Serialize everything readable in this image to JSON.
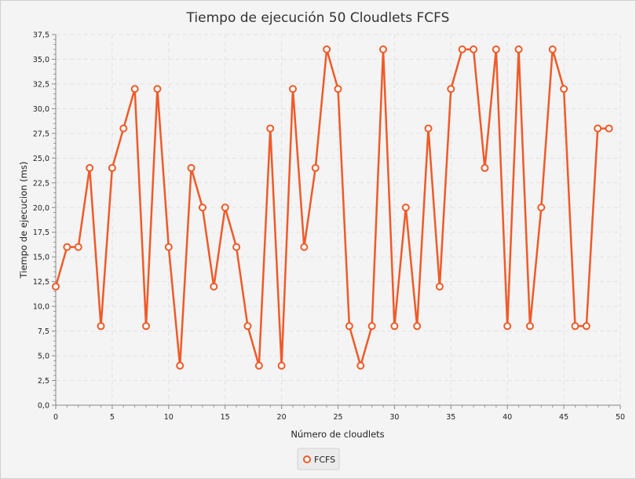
{
  "chart_data": {
    "type": "line",
    "title": "Tiempo de ejecución 50 Cloudlets FCFS",
    "xlabel": "Número de cloudlets",
    "ylabel": "Tiempo de ejecucion (ms)",
    "xlim": [
      0,
      50
    ],
    "ylim": [
      0,
      37.5
    ],
    "x_ticks": [
      "0",
      "5",
      "10",
      "15",
      "20",
      "25",
      "30",
      "35",
      "40",
      "45",
      "50"
    ],
    "y_ticks": [
      "0,0",
      "2,5",
      "5,0",
      "7,5",
      "10,0",
      "12,5",
      "15,0",
      "17,5",
      "20,0",
      "22,5",
      "25,0",
      "27,5",
      "30,0",
      "32,5",
      "35,0",
      "37,5"
    ],
    "grid": true,
    "legend_position": "bottom",
    "series": [
      {
        "name": "FCFS",
        "color": "#f05a28",
        "x": [
          0,
          1,
          2,
          3,
          4,
          5,
          6,
          7,
          8,
          9,
          10,
          11,
          12,
          13,
          14,
          15,
          16,
          17,
          18,
          19,
          20,
          21,
          22,
          23,
          24,
          25,
          26,
          27,
          28,
          29,
          30,
          31,
          32,
          33,
          34,
          35,
          36,
          37,
          38,
          39,
          40,
          41,
          42,
          43,
          44,
          45,
          46,
          47,
          48,
          49
        ],
        "values": [
          12,
          16,
          16,
          24,
          8,
          24,
          28,
          32,
          8,
          32,
          16,
          4,
          24,
          20,
          12,
          20,
          16,
          8,
          4,
          28,
          4,
          32,
          16,
          24,
          36,
          32,
          8,
          4,
          8,
          36,
          8,
          20,
          8,
          28,
          12,
          32,
          36,
          36,
          24,
          36,
          8,
          36,
          8,
          20,
          36,
          32,
          8,
          8,
          28,
          28
        ]
      }
    ]
  }
}
